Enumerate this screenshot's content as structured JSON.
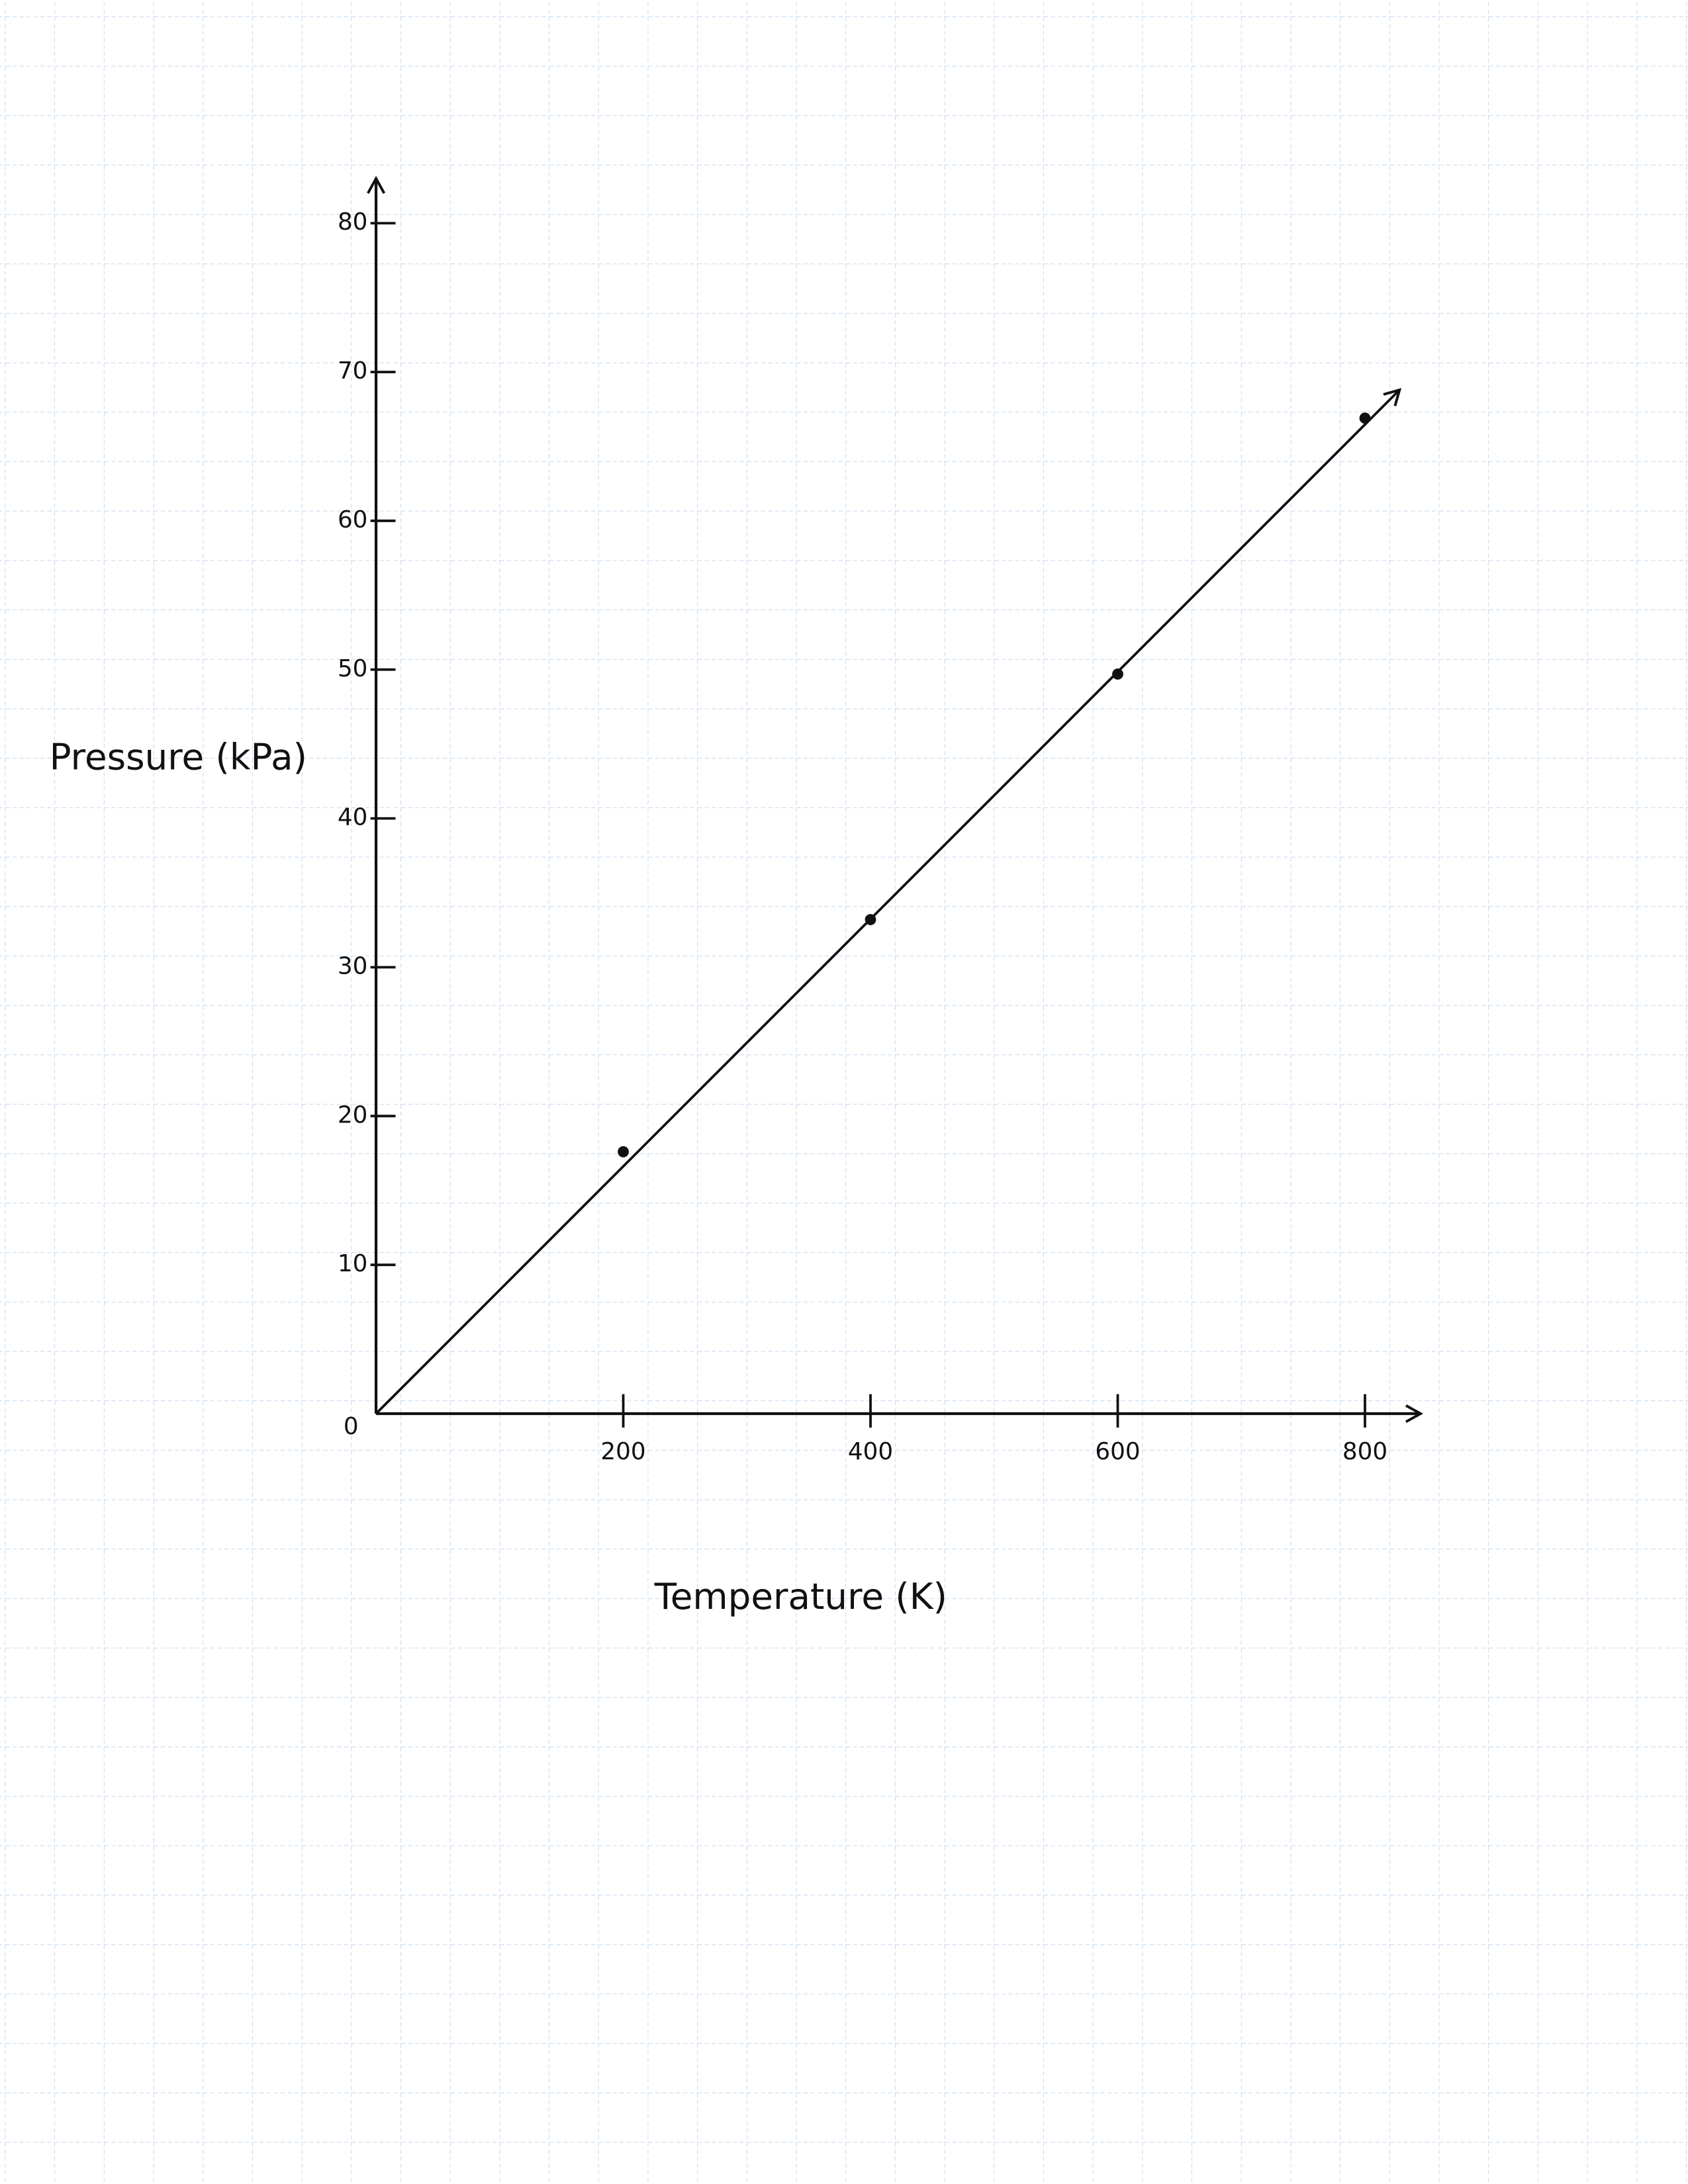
{
  "chart_data": {
    "type": "scatter",
    "x_label": "Temperature (K)",
    "y_label": "Pressure (kPa)",
    "x": [
      200,
      400,
      600,
      800
    ],
    "values": [
      17.6,
      33.2,
      49.7,
      66.9
    ],
    "color": "#111111",
    "fit_line": {
      "x": [
        0,
        828
      ],
      "values": [
        0,
        68.8
      ]
    },
    "xlim": [
      0,
      845
    ],
    "ylim": [
      0,
      83
    ],
    "xticks": [
      200,
      400,
      600,
      800
    ],
    "yticks": [
      0,
      10,
      20,
      30,
      40,
      50,
      60,
      70,
      80
    ]
  }
}
